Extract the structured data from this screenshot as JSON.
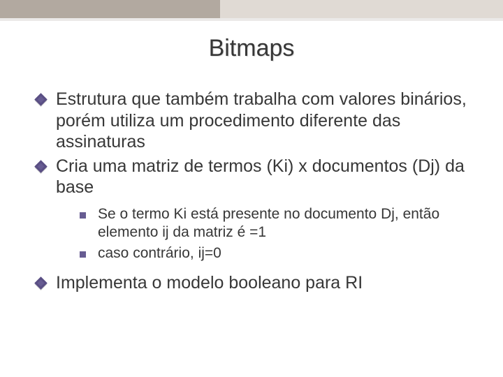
{
  "title": "Bitmaps",
  "bullets": [
    {
      "text": "Estrutura que também trabalha com valores binários, porém utiliza um procedimento diferente das assinaturas"
    },
    {
      "text": "Cria uma matriz de termos (Ki) x documentos (Dj) da base",
      "sub": [
        "Se o termo Ki está presente no documento Dj, então elemento ij da matriz é =1",
        "caso contrário, ij=0"
      ]
    },
    {
      "text": "Implementa o modelo booleano para RI"
    }
  ],
  "colors": {
    "topband": "#e0dad4",
    "darkbox": "#b2a9a0",
    "bullet": "#675c92",
    "text": "#373737"
  },
  "fonts": {
    "title_size": 34,
    "body_size": 25,
    "sub_size": 21
  }
}
